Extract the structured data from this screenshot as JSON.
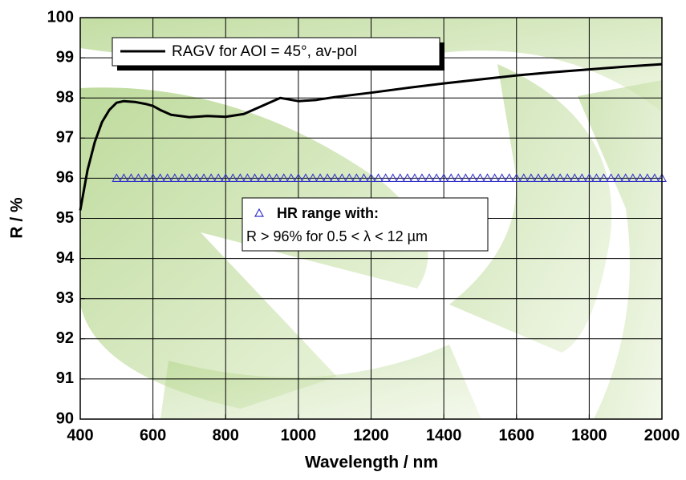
{
  "chart_data": {
    "type": "line",
    "xlabel": "Wavelength / nm",
    "ylabel": "R / %",
    "xlim": [
      400,
      2000
    ],
    "ylim": [
      90,
      100
    ],
    "xticks": [
      400,
      600,
      800,
      1000,
      1200,
      1400,
      1600,
      1800,
      2000
    ],
    "yticks": [
      90,
      91,
      92,
      93,
      94,
      95,
      96,
      97,
      98,
      99,
      100
    ],
    "grid": true,
    "annotation": "R > 96% for 0.5 < λ < 12 µm",
    "series": [
      {
        "name": "RAGV for AOI = 45°, av-pol",
        "color": "#000000",
        "type": "line",
        "x": [
          400,
          420,
          440,
          460,
          480,
          500,
          520,
          550,
          580,
          600,
          620,
          650,
          700,
          750,
          800,
          850,
          900,
          950,
          1000,
          1050,
          1100,
          1200,
          1300,
          1400,
          1500,
          1600,
          1700,
          1800,
          1900,
          2000
        ],
        "values": [
          95.2,
          96.2,
          96.9,
          97.4,
          97.7,
          97.88,
          97.92,
          97.9,
          97.85,
          97.8,
          97.7,
          97.58,
          97.52,
          97.55,
          97.53,
          97.6,
          97.8,
          98.0,
          97.92,
          97.95,
          98.02,
          98.13,
          98.25,
          98.36,
          98.46,
          98.56,
          98.64,
          98.71,
          98.78,
          98.84
        ]
      },
      {
        "name": "HR range with:",
        "color": "#3333cc",
        "type": "scatter",
        "x": [
          500,
          520,
          540,
          560,
          580,
          600,
          620,
          640,
          660,
          680,
          700,
          720,
          740,
          760,
          780,
          800,
          820,
          840,
          860,
          880,
          900,
          920,
          940,
          960,
          980,
          1000,
          1020,
          1040,
          1060,
          1080,
          1100,
          1120,
          1140,
          1160,
          1180,
          1200,
          1220,
          1240,
          1260,
          1280,
          1300,
          1320,
          1340,
          1360,
          1380,
          1400,
          1420,
          1440,
          1460,
          1480,
          1500,
          1520,
          1540,
          1560,
          1580,
          1600,
          1620,
          1640,
          1660,
          1680,
          1700,
          1720,
          1740,
          1760,
          1780,
          1800,
          1820,
          1840,
          1860,
          1880,
          1900,
          1920,
          1940,
          1960,
          1980,
          2000
        ],
        "values": [
          96,
          96,
          96,
          96,
          96,
          96,
          96,
          96,
          96,
          96,
          96,
          96,
          96,
          96,
          96,
          96,
          96,
          96,
          96,
          96,
          96,
          96,
          96,
          96,
          96,
          96,
          96,
          96,
          96,
          96,
          96,
          96,
          96,
          96,
          96,
          96,
          96,
          96,
          96,
          96,
          96,
          96,
          96,
          96,
          96,
          96,
          96,
          96,
          96,
          96,
          96,
          96,
          96,
          96,
          96,
          96,
          96,
          96,
          96,
          96,
          96,
          96,
          96,
          96,
          96,
          96,
          96,
          96,
          96,
          96,
          96,
          96,
          96,
          96,
          96,
          96
        ]
      }
    ]
  }
}
